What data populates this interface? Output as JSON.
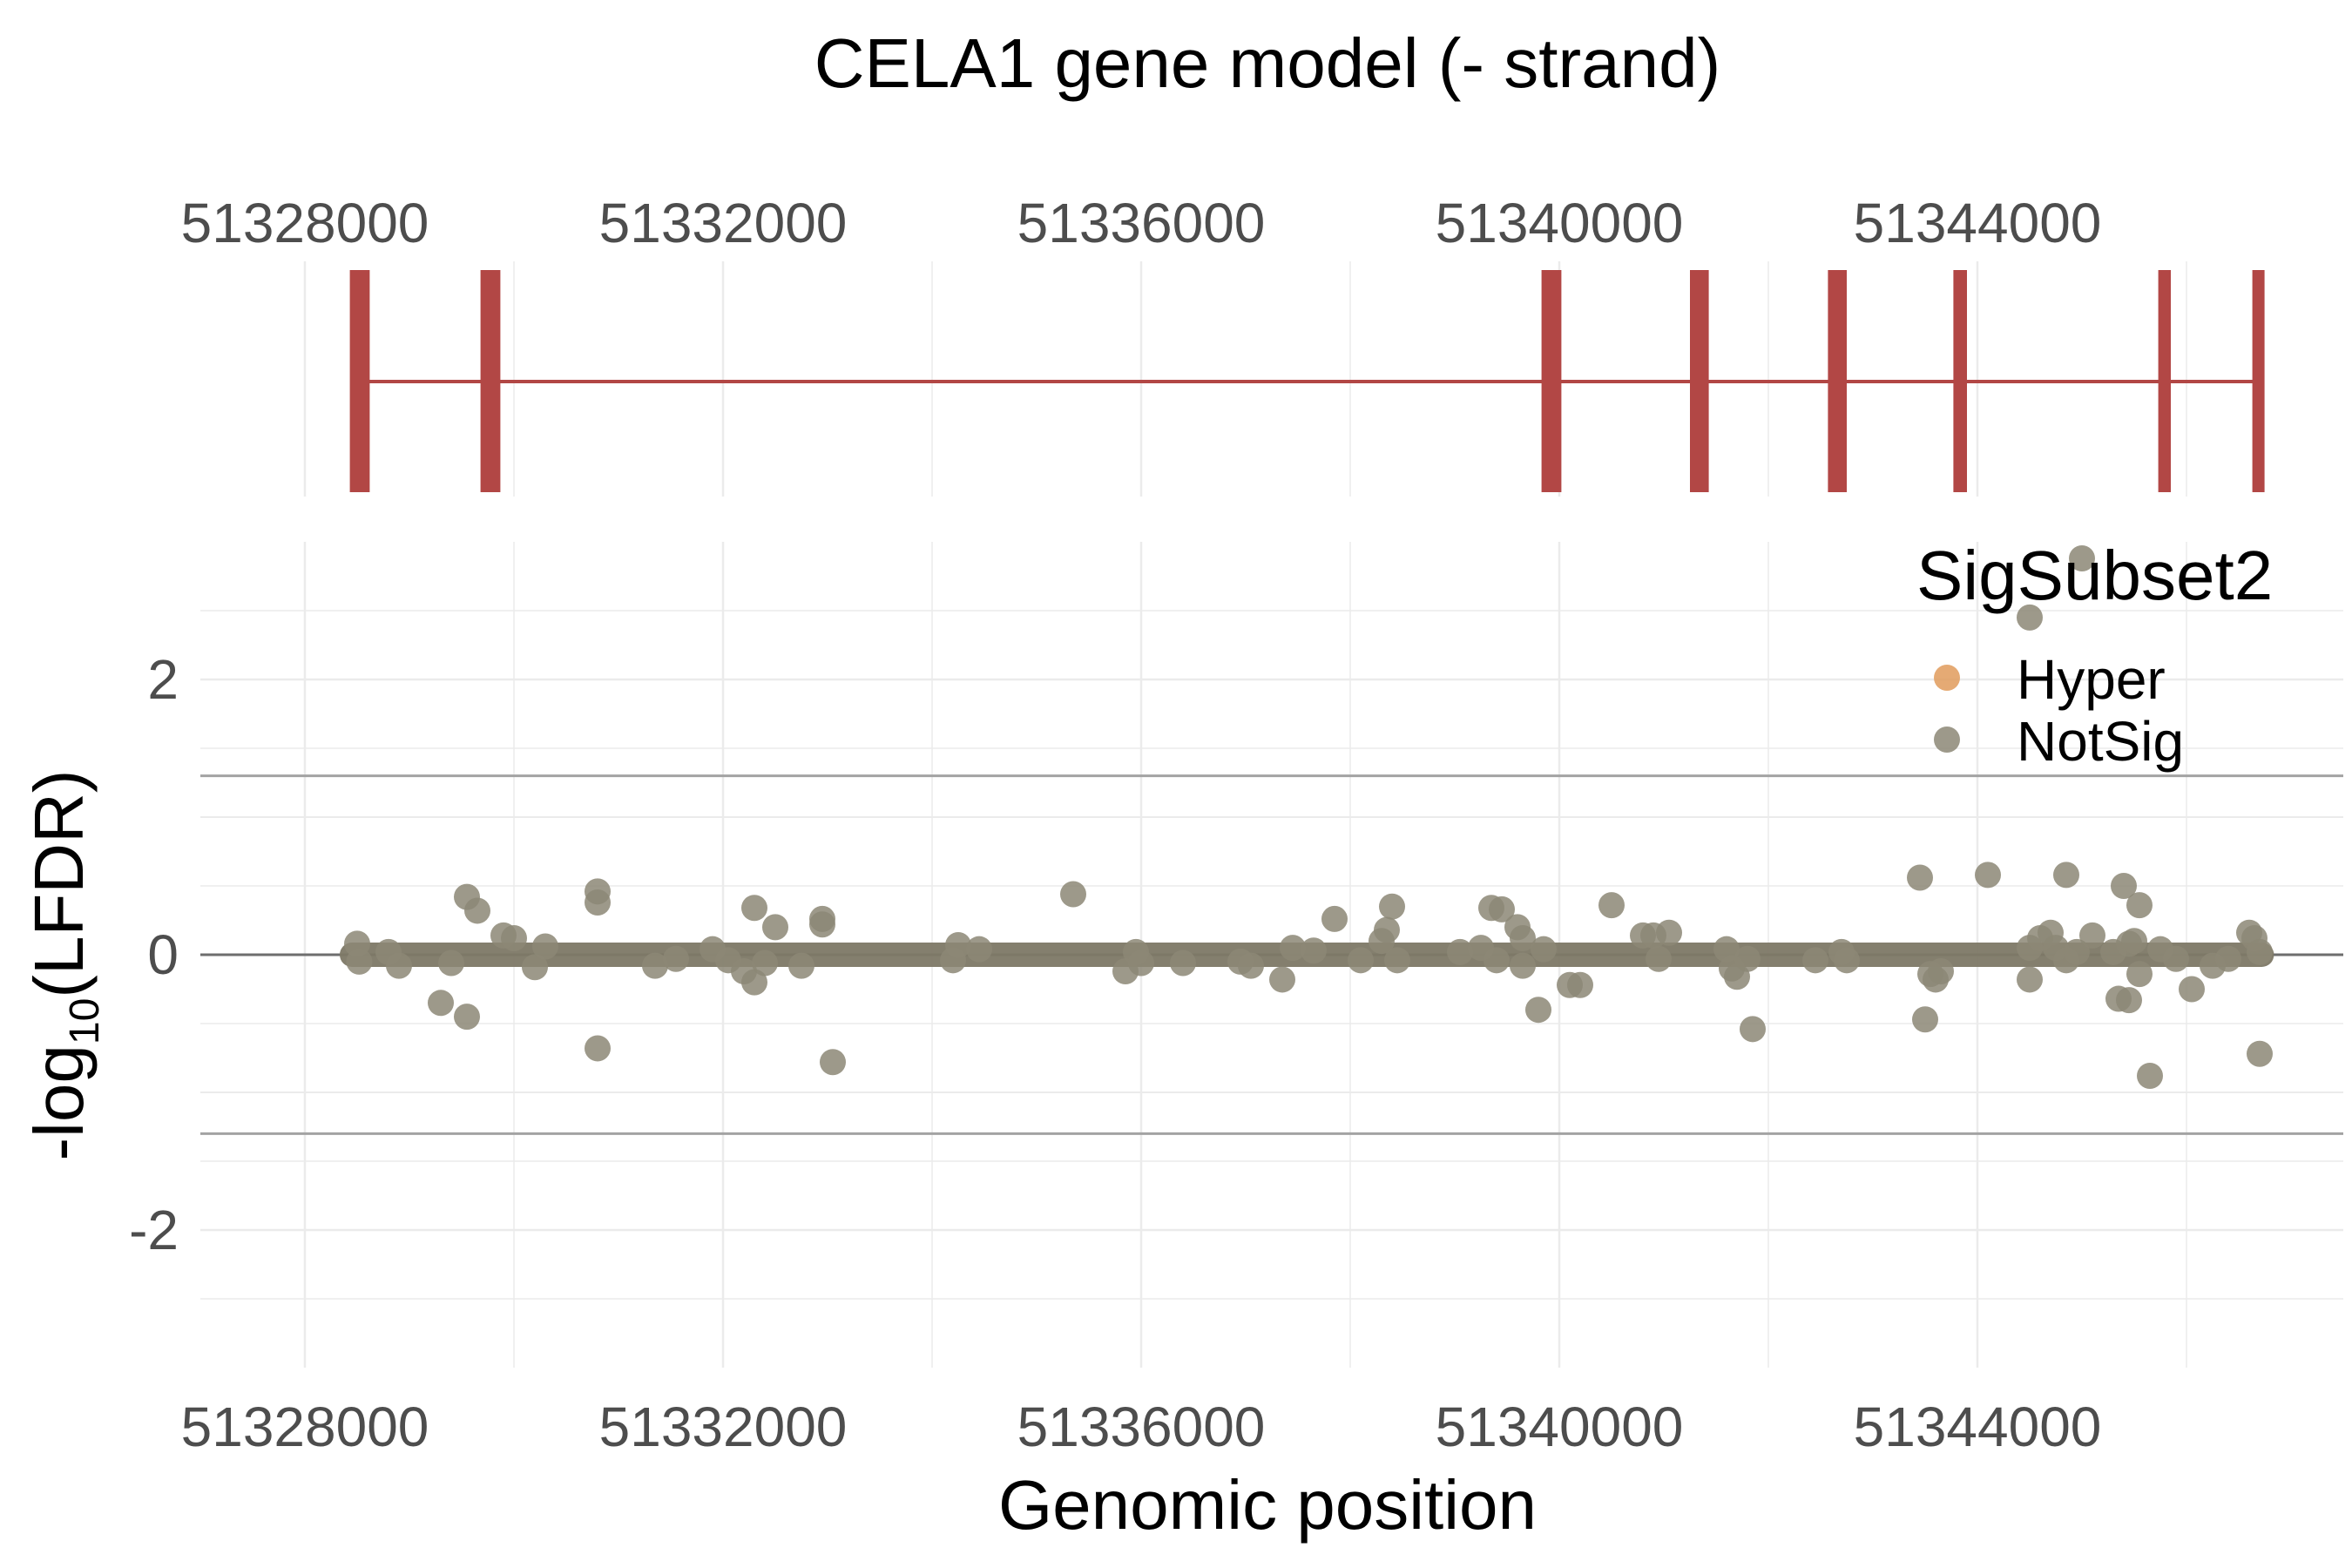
{
  "chart_data": [
    {
      "type": "gene-model",
      "title": "CELA1 gene model (- strand)",
      "xlim": [
        51327000,
        51347500
      ],
      "x_ticks": [
        51328000,
        51332000,
        51336000,
        51340000,
        51344000
      ],
      "x_tick_labels": [
        "51328000",
        "51332000",
        "51336000",
        "51340000",
        "51344000"
      ],
      "gene_span": [
        51328500,
        51346700
      ],
      "exons": [
        {
          "start": 51328430,
          "end": 51328620
        },
        {
          "start": 51329680,
          "end": 51329870
        },
        {
          "start": 51339830,
          "end": 51340020
        },
        {
          "start": 51341250,
          "end": 51341430
        },
        {
          "start": 51342570,
          "end": 51342750
        },
        {
          "start": 51343770,
          "end": 51343900
        },
        {
          "start": 51345730,
          "end": 51345850
        },
        {
          "start": 51346630,
          "end": 51346720
        }
      ],
      "exon_color": "#b24745"
    },
    {
      "type": "scatter",
      "xlabel": "Genomic position",
      "ylabel": "-log10(LFDR)",
      "ylabel_base": "-log",
      "ylabel_sub": "10",
      "ylabel_rest": "(LFDR)",
      "xlim": [
        51327000,
        51347500
      ],
      "ylim": [
        -3.0,
        3.0
      ],
      "x_ticks": [
        51328000,
        51332000,
        51336000,
        51340000,
        51344000
      ],
      "x_tick_labels": [
        "51328000",
        "51332000",
        "51336000",
        "51340000",
        "51344000"
      ],
      "y_ticks": [
        -2,
        0,
        2
      ],
      "y_tick_labels": [
        "-2",
        "0",
        "2"
      ],
      "threshold_lines": [
        1.3,
        -1.3
      ],
      "grid": true,
      "legend": {
        "title": "SigSubset2",
        "position": "top-right",
        "entries": [
          {
            "label": "Hyper",
            "color": "#e09b5c"
          },
          {
            "label": "NotSig",
            "color": "#8c8775"
          }
        ]
      },
      "series": [
        {
          "name": "NotSig",
          "color": "#8c8775",
          "band": {
            "x_start": 51328450,
            "x_end": 51346720,
            "y": 0
          },
          "points": [
            [
              51328500,
              0.08
            ],
            [
              51328520,
              -0.05
            ],
            [
              51328800,
              0.02
            ],
            [
              51328900,
              -0.08
            ],
            [
              51329300,
              -0.35
            ],
            [
              51329400,
              -0.06
            ],
            [
              51329550,
              0.42
            ],
            [
              51329650,
              0.32
            ],
            [
              51329550,
              -0.45
            ],
            [
              51329900,
              0.14
            ],
            [
              51330000,
              0.12
            ],
            [
              51330200,
              -0.09
            ],
            [
              51330300,
              0.06
            ],
            [
              51330800,
              0.46
            ],
            [
              51330800,
              0.38
            ],
            [
              51330800,
              -0.68
            ],
            [
              51331350,
              -0.08
            ],
            [
              51331550,
              -0.03
            ],
            [
              51331900,
              0.04
            ],
            [
              51332050,
              -0.04
            ],
            [
              51332200,
              -0.12
            ],
            [
              51332300,
              -0.2
            ],
            [
              51332300,
              0.34
            ],
            [
              51332500,
              0.2
            ],
            [
              51332400,
              -0.06
            ],
            [
              51332750,
              -0.08
            ],
            [
              51332950,
              0.26
            ],
            [
              51332950,
              0.22
            ],
            [
              51333050,
              -0.78
            ],
            [
              51334200,
              -0.04
            ],
            [
              51334250,
              0.07
            ],
            [
              51334450,
              0.04
            ],
            [
              51335350,
              0.44
            ],
            [
              51335850,
              -0.12
            ],
            [
              51335950,
              0.02
            ],
            [
              51336000,
              -0.06
            ],
            [
              51336400,
              -0.06
            ],
            [
              51336950,
              -0.05
            ],
            [
              51337050,
              -0.08
            ],
            [
              51337350,
              -0.18
            ],
            [
              51337450,
              0.05
            ],
            [
              51337650,
              0.03
            ],
            [
              51337850,
              0.26
            ],
            [
              51338100,
              -0.04
            ],
            [
              51338300,
              0.1
            ],
            [
              51338350,
              0.18
            ],
            [
              51338400,
              0.35
            ],
            [
              51338450,
              -0.04
            ],
            [
              51339050,
              0.02
            ],
            [
              51339250,
              0.05
            ],
            [
              51339350,
              0.34
            ],
            [
              51339450,
              0.33
            ],
            [
              51339400,
              -0.04
            ],
            [
              51339600,
              0.2
            ],
            [
              51339650,
              0.12
            ],
            [
              51339650,
              -0.08
            ],
            [
              51339800,
              -0.4
            ],
            [
              51339850,
              0.04
            ],
            [
              51340100,
              -0.22
            ],
            [
              51340200,
              -0.22
            ],
            [
              51340500,
              0.36
            ],
            [
              51340800,
              0.14
            ],
            [
              51340900,
              0.14
            ],
            [
              51340950,
              -0.03
            ],
            [
              51341050,
              0.16
            ],
            [
              51341600,
              0.04
            ],
            [
              51341650,
              -0.1
            ],
            [
              51341700,
              -0.16
            ],
            [
              51341800,
              -0.03
            ],
            [
              51341850,
              -0.54
            ],
            [
              51342450,
              -0.04
            ],
            [
              51342700,
              0.02
            ],
            [
              51342750,
              -0.04
            ],
            [
              51343450,
              0.56
            ],
            [
              51343500,
              -0.47
            ],
            [
              51343550,
              -0.14
            ],
            [
              51343600,
              -0.18
            ],
            [
              51343650,
              -0.12
            ],
            [
              51344100,
              0.58
            ],
            [
              51344500,
              0.05
            ],
            [
              51344500,
              -0.18
            ],
            [
              51344600,
              0.12
            ],
            [
              51344700,
              0.16
            ],
            [
              51344750,
              0.05
            ],
            [
              51344850,
              -0.04
            ],
            [
              51344850,
              0.58
            ],
            [
              51344950,
              0.02
            ],
            [
              51345100,
              0.14
            ],
            [
              51345300,
              0.02
            ],
            [
              51345350,
              -0.32
            ],
            [
              51345400,
              0.5
            ],
            [
              51345450,
              -0.33
            ],
            [
              51345450,
              0.08
            ],
            [
              51345500,
              0.1
            ],
            [
              51345550,
              0.36
            ],
            [
              51345550,
              -0.14
            ],
            [
              51345650,
              -0.88
            ],
            [
              51345750,
              0.04
            ],
            [
              51345900,
              -0.03
            ],
            [
              51346050,
              -0.25
            ],
            [
              51346250,
              -0.08
            ],
            [
              51346400,
              -0.03
            ],
            [
              51346600,
              0.16
            ],
            [
              51346650,
              0.12
            ],
            [
              51346700,
              0.02
            ],
            [
              51346700,
              -0.72
            ],
            [
              51344500,
              2.45
            ],
            [
              51345000,
              2.88
            ]
          ]
        }
      ]
    }
  ]
}
